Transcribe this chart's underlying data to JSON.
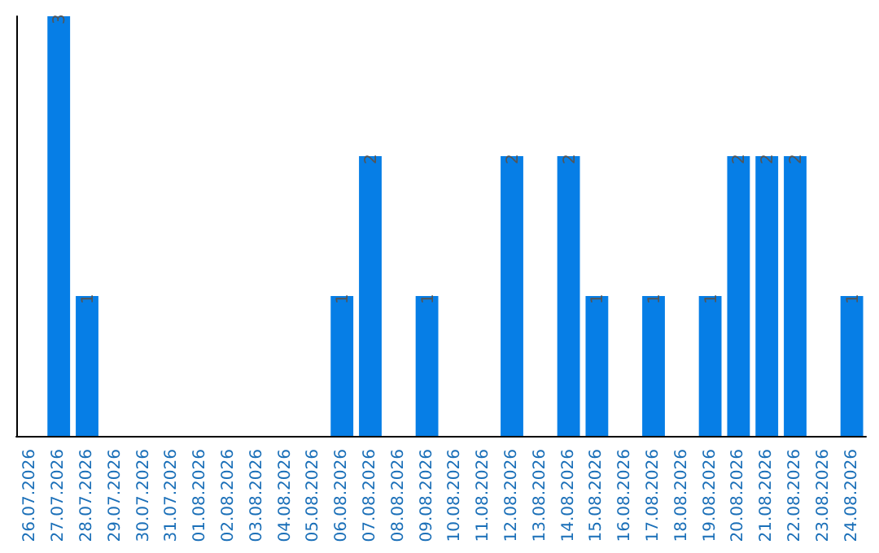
{
  "chart_data": {
    "type": "bar",
    "categories": [
      "26.07.2026",
      "27.07.2026",
      "28.07.2026",
      "29.07.2026",
      "30.07.2026",
      "31.07.2026",
      "01.08.2026",
      "02.08.2026",
      "03.08.2026",
      "04.08.2026",
      "05.08.2026",
      "06.08.2026",
      "07.08.2026",
      "08.08.2026",
      "09.08.2026",
      "10.08.2026",
      "11.08.2026",
      "12.08.2026",
      "13.08.2026",
      "14.08.2026",
      "15.08.2026",
      "16.08.2026",
      "17.08.2026",
      "18.08.2026",
      "19.08.2026",
      "20.08.2026",
      "21.08.2026",
      "22.08.2026",
      "23.08.2026",
      "24.08.2026"
    ],
    "values": [
      0,
      3,
      1,
      0,
      0,
      0,
      0,
      0,
      0,
      0,
      0,
      1,
      2,
      0,
      1,
      0,
      0,
      2,
      0,
      2,
      1,
      0,
      1,
      0,
      1,
      2,
      2,
      2,
      0,
      1
    ],
    "value_labels": [
      null,
      "3",
      "1",
      null,
      null,
      null,
      null,
      null,
      null,
      null,
      null,
      "1",
      "2",
      null,
      "1",
      null,
      null,
      "2",
      null,
      "2",
      "1",
      null,
      "1",
      null,
      "1",
      "2",
      "2",
      "2",
      null,
      "1"
    ],
    "color": "#067ee6",
    "ylim": [
      0,
      3
    ],
    "tick_labels": "x",
    "grid": false
  }
}
